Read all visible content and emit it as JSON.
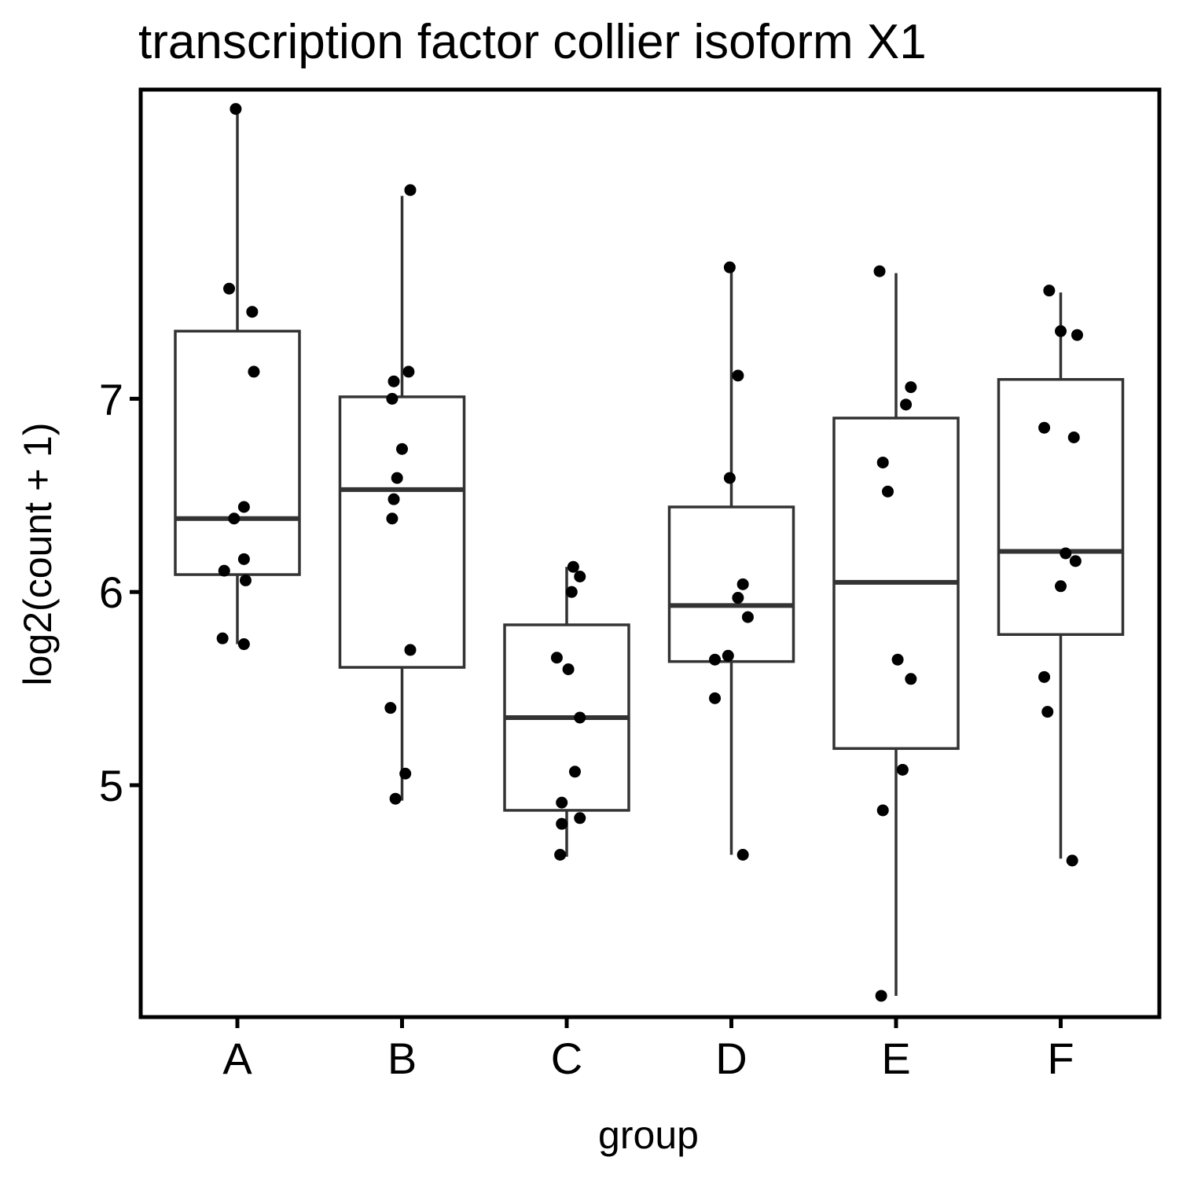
{
  "chart_data": {
    "type": "box",
    "title": "transcription factor collier isoform X1",
    "xlabel": "group",
    "ylabel": "log2(count + 1)",
    "ylim": [
      3.8,
      8.6
    ],
    "yticks": [
      5,
      6,
      7
    ],
    "grid": false,
    "categories": [
      "A",
      "B",
      "C",
      "D",
      "E",
      "F"
    ],
    "boxes": [
      {
        "group": "A",
        "whisker_low": 5.73,
        "q1": 6.09,
        "median": 6.38,
        "q3": 7.35,
        "whisker_high": 8.5
      },
      {
        "group": "B",
        "whisker_low": 4.92,
        "q1": 5.61,
        "median": 6.53,
        "q3": 7.01,
        "whisker_high": 8.05
      },
      {
        "group": "C",
        "whisker_low": 4.63,
        "q1": 4.87,
        "median": 5.35,
        "q3": 5.83,
        "whisker_high": 6.13
      },
      {
        "group": "D",
        "whisker_low": 4.64,
        "q1": 5.64,
        "median": 5.93,
        "q3": 6.44,
        "whisker_high": 7.68
      },
      {
        "group": "E",
        "whisker_low": 3.91,
        "q1": 5.19,
        "median": 6.05,
        "q3": 6.9,
        "whisker_high": 7.65
      },
      {
        "group": "F",
        "whisker_low": 4.62,
        "q1": 5.78,
        "median": 6.21,
        "q3": 7.1,
        "whisker_high": 7.55
      }
    ],
    "points": [
      {
        "group": "A",
        "y": 8.5,
        "jitter": -0.01
      },
      {
        "group": "A",
        "y": 7.57,
        "jitter": -0.05
      },
      {
        "group": "A",
        "y": 7.45,
        "jitter": 0.09
      },
      {
        "group": "A",
        "y": 7.14,
        "jitter": 0.1
      },
      {
        "group": "A",
        "y": 6.44,
        "jitter": 0.04
      },
      {
        "group": "A",
        "y": 6.38,
        "jitter": -0.02
      },
      {
        "group": "A",
        "y": 6.17,
        "jitter": 0.04
      },
      {
        "group": "A",
        "y": 6.11,
        "jitter": -0.08
      },
      {
        "group": "A",
        "y": 6.06,
        "jitter": 0.05
      },
      {
        "group": "A",
        "y": 5.76,
        "jitter": -0.09
      },
      {
        "group": "A",
        "y": 5.73,
        "jitter": 0.04
      },
      {
        "group": "B",
        "y": 8.08,
        "jitter": 0.05
      },
      {
        "group": "B",
        "y": 7.14,
        "jitter": 0.04
      },
      {
        "group": "B",
        "y": 7.09,
        "jitter": -0.05
      },
      {
        "group": "B",
        "y": 7.0,
        "jitter": -0.06
      },
      {
        "group": "B",
        "y": 6.74,
        "jitter": 0.0
      },
      {
        "group": "B",
        "y": 6.59,
        "jitter": -0.03
      },
      {
        "group": "B",
        "y": 6.48,
        "jitter": -0.05
      },
      {
        "group": "B",
        "y": 6.38,
        "jitter": -0.06
      },
      {
        "group": "B",
        "y": 5.7,
        "jitter": 0.05
      },
      {
        "group": "B",
        "y": 5.4,
        "jitter": -0.07
      },
      {
        "group": "B",
        "y": 5.06,
        "jitter": 0.02
      },
      {
        "group": "B",
        "y": 4.93,
        "jitter": -0.04
      },
      {
        "group": "C",
        "y": 6.13,
        "jitter": 0.04
      },
      {
        "group": "C",
        "y": 6.08,
        "jitter": 0.08
      },
      {
        "group": "C",
        "y": 6.0,
        "jitter": 0.03
      },
      {
        "group": "C",
        "y": 5.66,
        "jitter": -0.06
      },
      {
        "group": "C",
        "y": 5.6,
        "jitter": 0.01
      },
      {
        "group": "C",
        "y": 5.35,
        "jitter": 0.08
      },
      {
        "group": "C",
        "y": 5.07,
        "jitter": 0.05
      },
      {
        "group": "C",
        "y": 4.91,
        "jitter": -0.03
      },
      {
        "group": "C",
        "y": 4.83,
        "jitter": 0.08
      },
      {
        "group": "C",
        "y": 4.8,
        "jitter": -0.03
      },
      {
        "group": "C",
        "y": 4.64,
        "jitter": -0.04
      },
      {
        "group": "D",
        "y": 7.68,
        "jitter": -0.01
      },
      {
        "group": "D",
        "y": 7.12,
        "jitter": 0.04
      },
      {
        "group": "D",
        "y": 6.59,
        "jitter": -0.01
      },
      {
        "group": "D",
        "y": 6.04,
        "jitter": 0.07
      },
      {
        "group": "D",
        "y": 5.97,
        "jitter": 0.04
      },
      {
        "group": "D",
        "y": 5.87,
        "jitter": 0.1
      },
      {
        "group": "D",
        "y": 5.67,
        "jitter": -0.02
      },
      {
        "group": "D",
        "y": 5.65,
        "jitter": -0.1
      },
      {
        "group": "D",
        "y": 5.45,
        "jitter": -0.1
      },
      {
        "group": "D",
        "y": 4.64,
        "jitter": 0.07
      },
      {
        "group": "E",
        "y": 7.66,
        "jitter": -0.1
      },
      {
        "group": "E",
        "y": 7.06,
        "jitter": 0.09
      },
      {
        "group": "E",
        "y": 6.97,
        "jitter": 0.06
      },
      {
        "group": "E",
        "y": 6.67,
        "jitter": -0.08
      },
      {
        "group": "E",
        "y": 6.52,
        "jitter": -0.05
      },
      {
        "group": "E",
        "y": 5.65,
        "jitter": 0.01
      },
      {
        "group": "E",
        "y": 5.55,
        "jitter": 0.09
      },
      {
        "group": "E",
        "y": 5.08,
        "jitter": 0.04
      },
      {
        "group": "E",
        "y": 4.87,
        "jitter": -0.08
      },
      {
        "group": "E",
        "y": 3.91,
        "jitter": -0.09
      },
      {
        "group": "F",
        "y": 7.56,
        "jitter": -0.07
      },
      {
        "group": "F",
        "y": 7.35,
        "jitter": 0.0
      },
      {
        "group": "F",
        "y": 7.33,
        "jitter": 0.1
      },
      {
        "group": "F",
        "y": 6.85,
        "jitter": -0.1
      },
      {
        "group": "F",
        "y": 6.8,
        "jitter": 0.08
      },
      {
        "group": "F",
        "y": 6.2,
        "jitter": 0.03
      },
      {
        "group": "F",
        "y": 6.16,
        "jitter": 0.09
      },
      {
        "group": "F",
        "y": 6.03,
        "jitter": 0.0
      },
      {
        "group": "F",
        "y": 5.56,
        "jitter": -0.1
      },
      {
        "group": "F",
        "y": 5.38,
        "jitter": -0.08
      },
      {
        "group": "F",
        "y": 4.61,
        "jitter": 0.07
      }
    ],
    "colors": {
      "box_stroke": "#333333",
      "point": "#000000",
      "axis": "#000000",
      "background": "#ffffff"
    }
  }
}
